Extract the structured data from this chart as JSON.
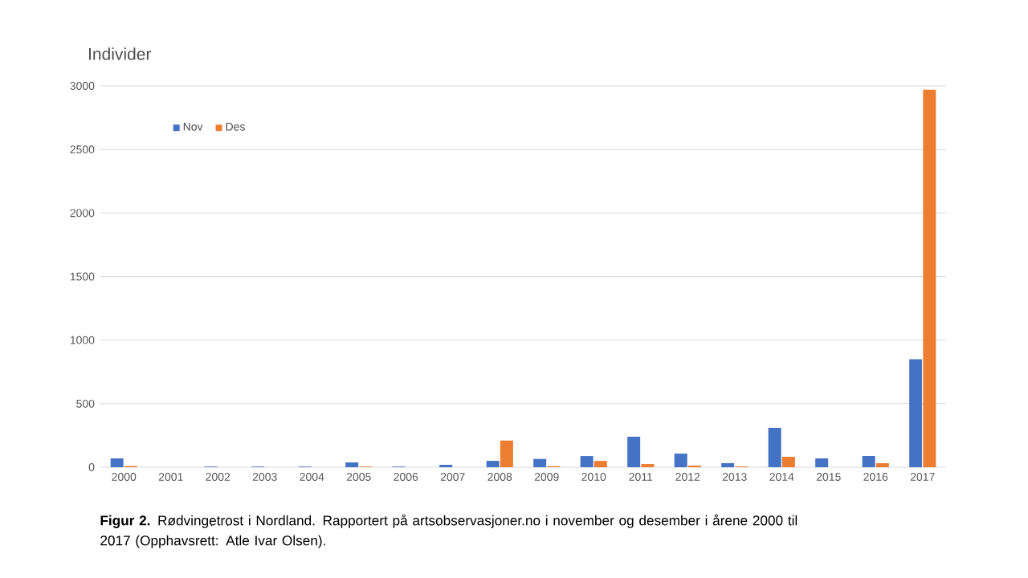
{
  "chart_data": {
    "type": "bar",
    "ylabel": "Individer",
    "annotations": [
      "**Figur 2.** Rødvingetrost i Nordland. Rapportert på artsobservasjoner.no i november og desember i årene 2000 til 2017 (Opphavsrett: Atle Ivar Olsen)."
    ],
    "categories": [
      "2000",
      "2001",
      "2002",
      "2003",
      "2004",
      "2005",
      "2006",
      "2007",
      "2008",
      "2009",
      "2010",
      "2011",
      "2012",
      "2013",
      "2014",
      "2015",
      "2016",
      "2017"
    ],
    "series": [
      {
        "name": "Nov",
        "color": "#4472c4",
        "values": [
          70,
          0,
          5,
          5,
          5,
          38,
          5,
          19,
          50,
          65,
          88,
          240,
          107,
          32,
          310,
          70,
          88,
          850
        ]
      },
      {
        "name": "Des",
        "color": "#ed7d31",
        "values": [
          10,
          0,
          0,
          0,
          0,
          5,
          0,
          0,
          210,
          8,
          50,
          25,
          13,
          6,
          82,
          0,
          32,
          2970
        ]
      }
    ],
    "ylim": [
      0,
      3000
    ],
    "yticks": [
      0,
      500,
      1000,
      1500,
      2000,
      2500,
      3000
    ],
    "grid": "y",
    "legend": "top left"
  }
}
